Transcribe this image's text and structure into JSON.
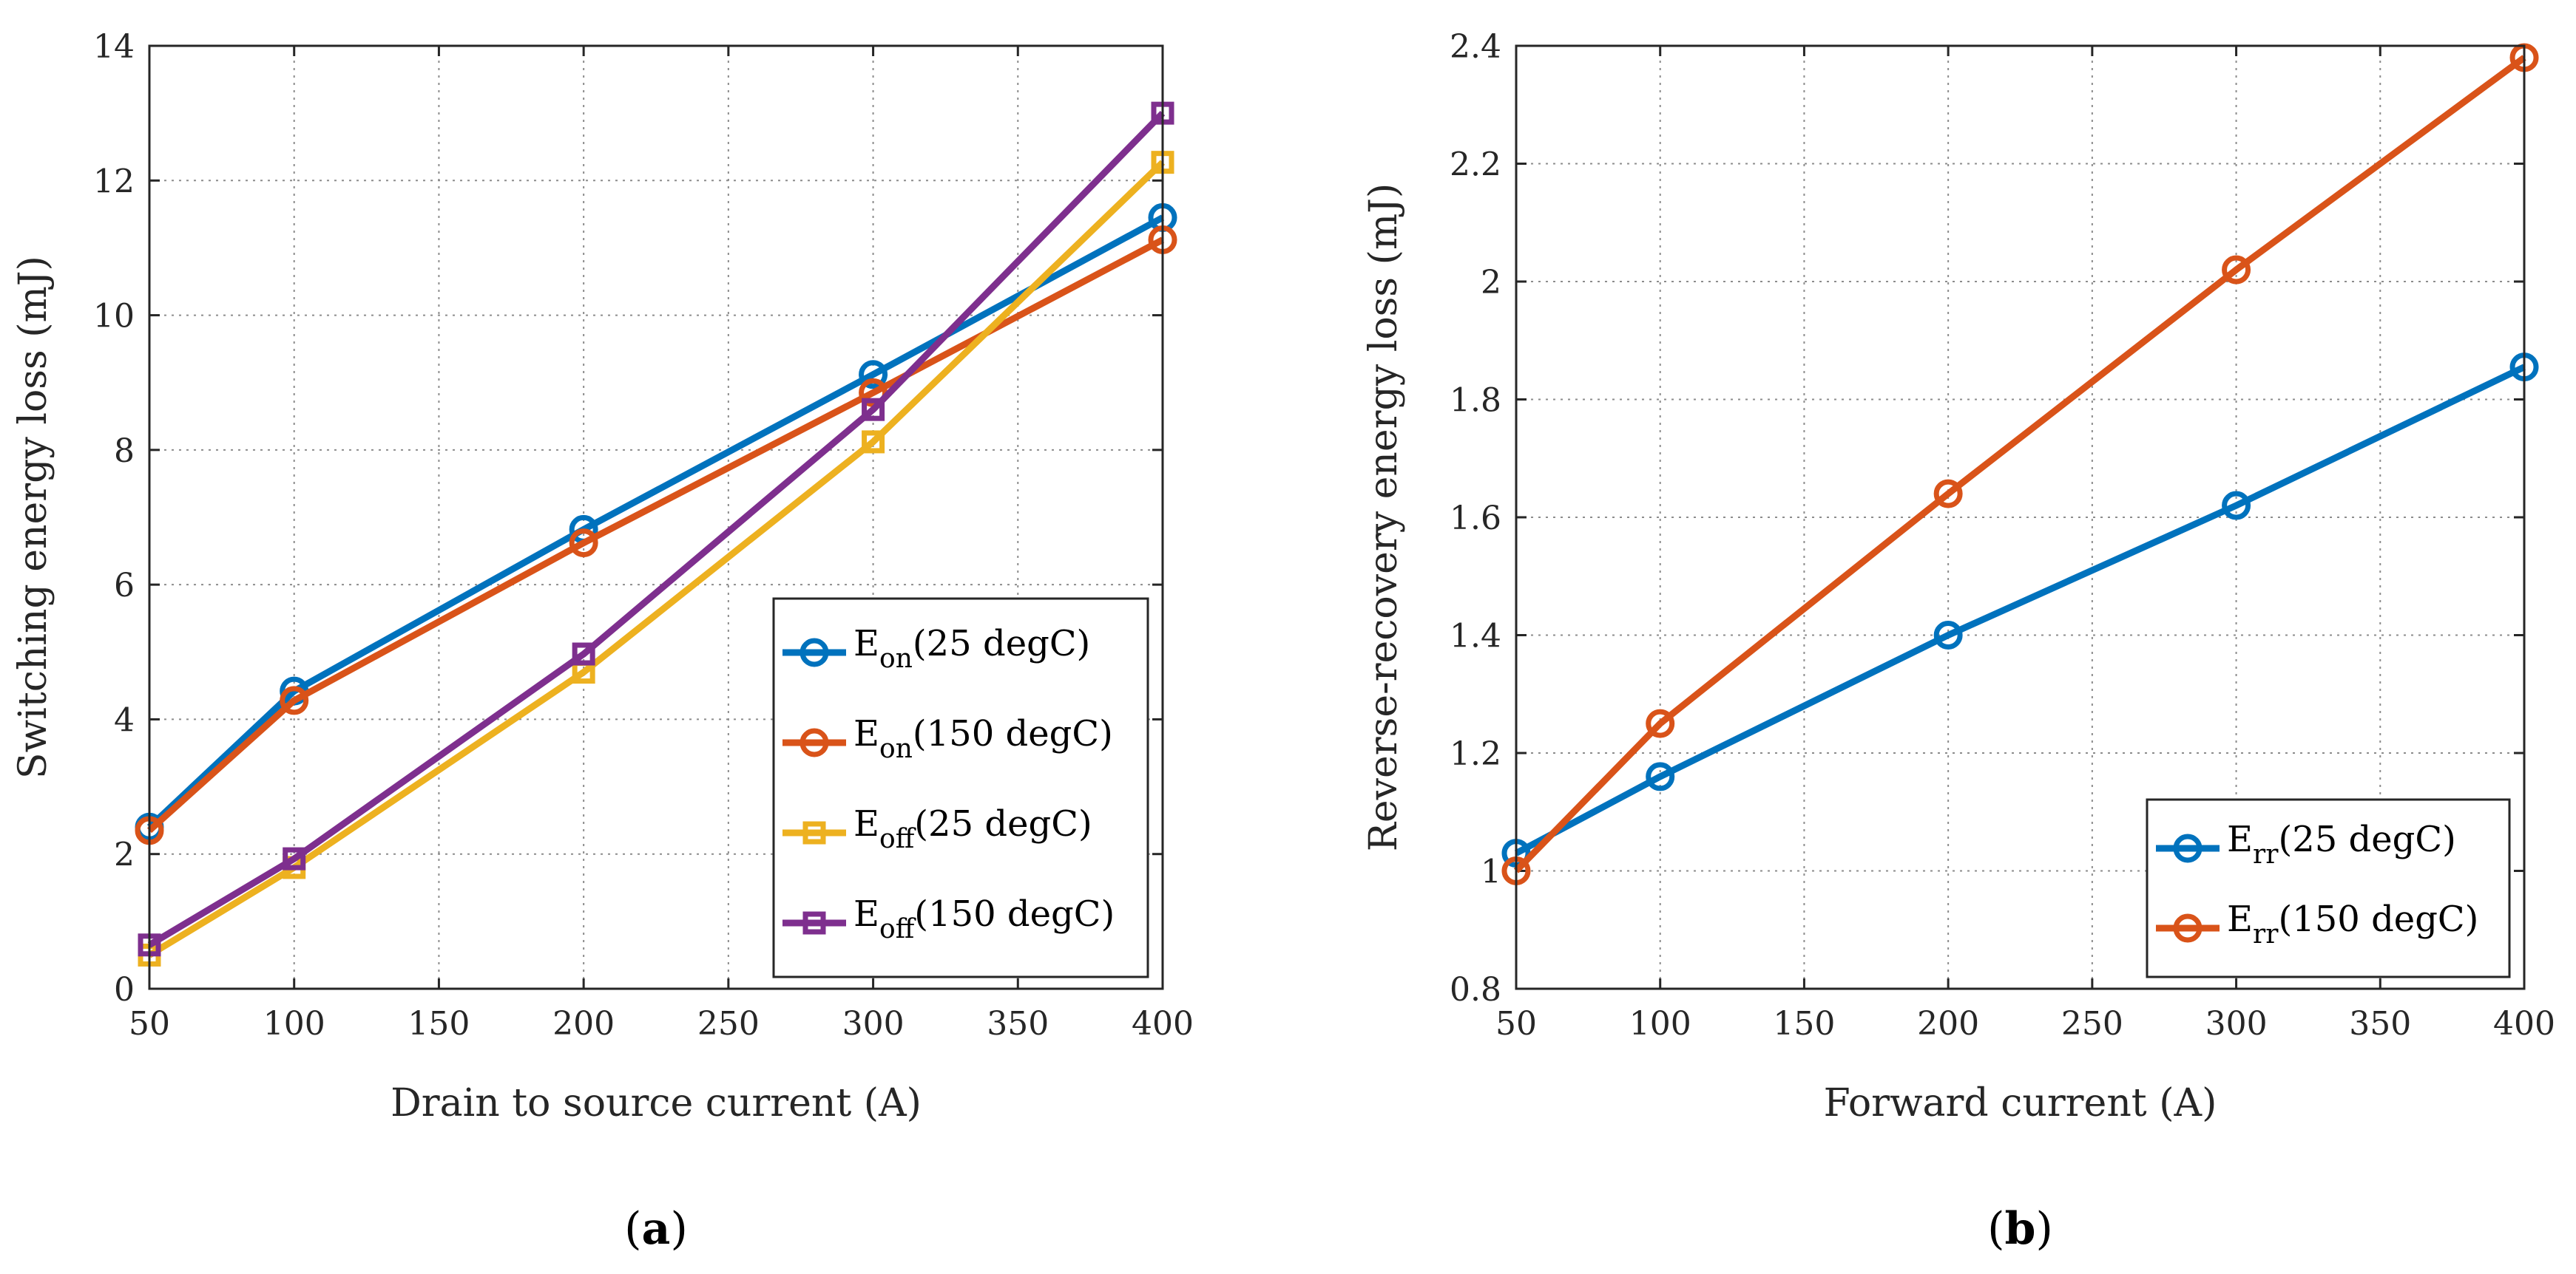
{
  "chart_data": [
    {
      "id": "a",
      "type": "line",
      "panel_label": "a",
      "title": "",
      "xlabel": "Drain to source current (A)",
      "ylabel": "Switching energy loss (mJ)",
      "xlim": [
        50,
        400
      ],
      "ylim": [
        0,
        14
      ],
      "xticks": [
        50,
        100,
        150,
        200,
        250,
        300,
        350,
        400
      ],
      "yticks": [
        0,
        2,
        4,
        6,
        8,
        10,
        12,
        14
      ],
      "grid": true,
      "legend_position": "lower-right",
      "x": [
        50,
        100,
        200,
        300,
        400
      ],
      "series": [
        {
          "name": "Eon(25 degC)",
          "label_main": "E",
          "label_sub": "on",
          "label_rest": "(25 degC)",
          "color": "#0072BD",
          "marker": "circle",
          "values": [
            2.4,
            4.42,
            6.82,
            9.12,
            11.45
          ]
        },
        {
          "name": "Eon(150 degC)",
          "label_main": "E",
          "label_sub": "on",
          "label_rest": "(150 degC)",
          "color": "#D95319",
          "marker": "circle",
          "values": [
            2.35,
            4.28,
            6.62,
            8.85,
            11.12
          ]
        },
        {
          "name": "Eoff(25 degC)",
          "label_main": "E",
          "label_sub": "off",
          "label_rest": "(25 degC)",
          "color": "#EDB120",
          "marker": "square",
          "values": [
            0.5,
            1.8,
            4.7,
            8.12,
            12.27
          ]
        },
        {
          "name": "Eoff(150 degC)",
          "label_main": "E",
          "label_sub": "off",
          "label_rest": "(150 degC)",
          "color": "#7E2F8E",
          "marker": "square",
          "values": [
            0.65,
            1.93,
            4.97,
            8.6,
            13.0
          ]
        }
      ]
    },
    {
      "id": "b",
      "type": "line",
      "panel_label": "b",
      "title": "",
      "xlabel": "Forward current (A)",
      "ylabel": "Reverse-recovery energy loss (mJ)",
      "xlim": [
        50,
        400
      ],
      "ylim": [
        0.8,
        2.4
      ],
      "xticks": [
        50,
        100,
        150,
        200,
        250,
        300,
        350,
        400
      ],
      "yticks": [
        0.8,
        1,
        1.2,
        1.4,
        1.6,
        1.8,
        2,
        2.2,
        2.4
      ],
      "grid": true,
      "legend_position": "lower-right",
      "x": [
        50,
        100,
        200,
        300,
        400
      ],
      "series": [
        {
          "name": "Err(25 degC)",
          "label_main": "E",
          "label_sub": "rr",
          "label_rest": "(25 degC)",
          "color": "#0072BD",
          "marker": "circle",
          "values": [
            1.03,
            1.16,
            1.4,
            1.62,
            1.855
          ]
        },
        {
          "name": "Err(150 degC)",
          "label_main": "E",
          "label_sub": "rr",
          "label_rest": "(150 degC)",
          "color": "#D95319",
          "marker": "circle",
          "values": [
            1.0,
            1.25,
            1.64,
            2.02,
            2.38
          ]
        }
      ]
    }
  ]
}
